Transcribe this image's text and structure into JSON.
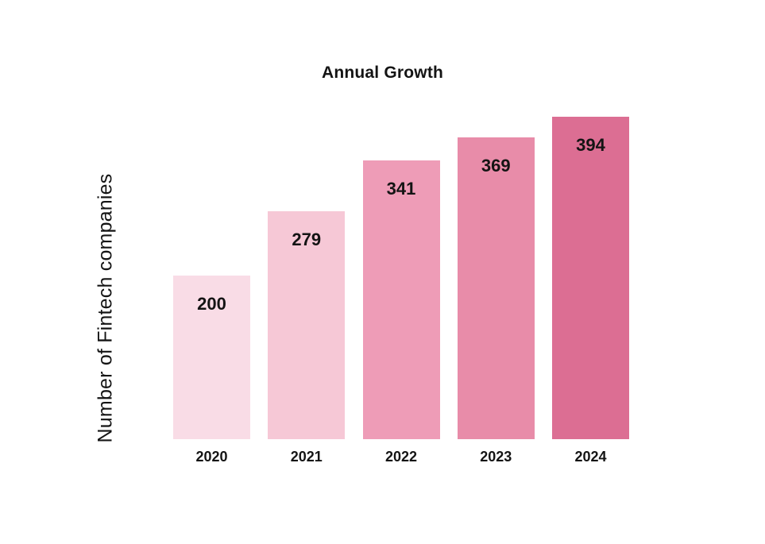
{
  "chart_data": {
    "type": "bar",
    "title": "Annual Growth",
    "xlabel": "",
    "ylabel": "Number of Fintech companies",
    "categories": [
      "2020",
      "2021",
      "2022",
      "2023",
      "2024"
    ],
    "values": [
      200,
      279,
      341,
      369,
      394
    ],
    "bar_colors": [
      "#f9dce6",
      "#f6c8d6",
      "#ee9cb7",
      "#e88ca9",
      "#dc6e93"
    ],
    "value_label_color": "#141414",
    "background_color": "#ffffff",
    "ylim": [
      0,
      420
    ],
    "grid": "off",
    "legend": "none",
    "axis_lines": "none",
    "value_labels_position": "inside-top"
  }
}
